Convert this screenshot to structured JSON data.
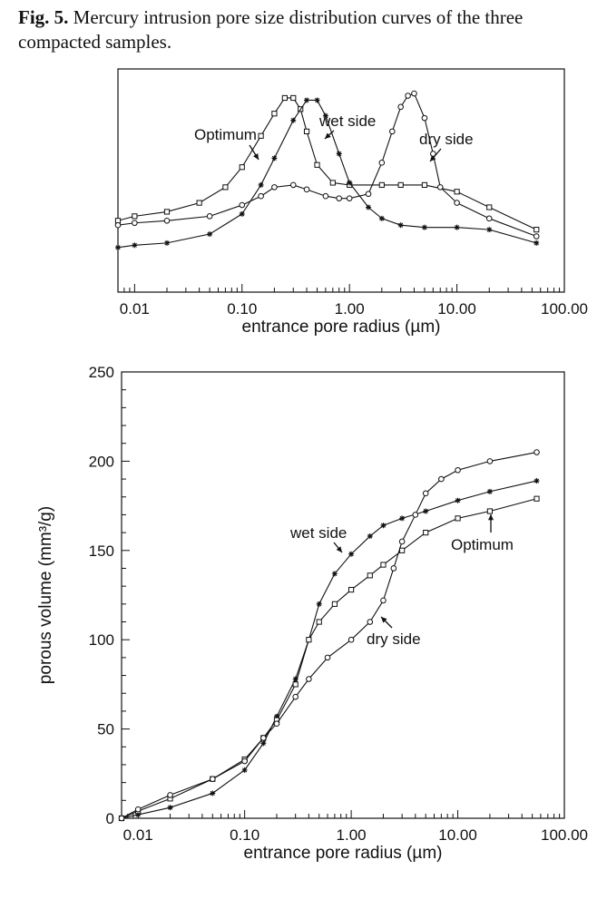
{
  "caption": {
    "label": "Fig. 5.",
    "text": "Mercury intrusion pore size distribution curves of the three compacted samples."
  },
  "chart_data": [
    {
      "type": "line",
      "title": "",
      "xlabel": "entrance pore radius (µm)",
      "ylabel": "",
      "xscale": "log",
      "xlim": [
        0.007,
        100
      ],
      "ylim": [
        0,
        1
      ],
      "x_tick_labels": [
        "0.01",
        "0.10",
        "1.00",
        "10.00",
        "100.00"
      ],
      "annotations": [
        "Optimum",
        "wet side",
        "dry side"
      ],
      "series": [
        {
          "name": "Optimum",
          "marker": "square",
          "x": [
            0.007,
            0.01,
            0.02,
            0.04,
            0.07,
            0.1,
            0.15,
            0.2,
            0.25,
            0.3,
            0.35,
            0.4,
            0.5,
            0.7,
            1.0,
            2.0,
            3.0,
            5.0,
            10,
            20,
            55
          ],
          "y": [
            0.32,
            0.34,
            0.36,
            0.4,
            0.47,
            0.56,
            0.7,
            0.8,
            0.87,
            0.87,
            0.82,
            0.72,
            0.57,
            0.49,
            0.48,
            0.48,
            0.48,
            0.48,
            0.45,
            0.38,
            0.28
          ]
        },
        {
          "name": "wet side",
          "marker": "star",
          "x": [
            0.007,
            0.01,
            0.02,
            0.05,
            0.1,
            0.15,
            0.2,
            0.3,
            0.4,
            0.5,
            0.6,
            0.8,
            1.0,
            1.5,
            2.0,
            3.0,
            5.0,
            10,
            20,
            55
          ],
          "y": [
            0.2,
            0.21,
            0.22,
            0.26,
            0.35,
            0.48,
            0.6,
            0.77,
            0.86,
            0.86,
            0.79,
            0.62,
            0.49,
            0.38,
            0.33,
            0.3,
            0.29,
            0.29,
            0.28,
            0.22
          ]
        },
        {
          "name": "dry side",
          "marker": "circle",
          "x": [
            0.007,
            0.01,
            0.02,
            0.05,
            0.1,
            0.15,
            0.2,
            0.3,
            0.4,
            0.6,
            0.8,
            1.0,
            1.5,
            2.0,
            2.5,
            3.0,
            3.5,
            4.0,
            5.0,
            6.0,
            7.0,
            10,
            20,
            55
          ],
          "y": [
            0.3,
            0.31,
            0.32,
            0.34,
            0.39,
            0.43,
            0.47,
            0.48,
            0.46,
            0.43,
            0.42,
            0.42,
            0.44,
            0.58,
            0.72,
            0.83,
            0.88,
            0.89,
            0.78,
            0.62,
            0.47,
            0.4,
            0.33,
            0.25
          ]
        }
      ]
    },
    {
      "type": "line",
      "title": "",
      "xlabel": "entrance pore radius (µm)",
      "ylabel": "porous volume (mm³/g)",
      "xscale": "log",
      "xlim": [
        0.007,
        100
      ],
      "ylim": [
        0,
        250
      ],
      "x_tick_labels": [
        "0.01",
        "0.10",
        "1.00",
        "10.00",
        "100.00"
      ],
      "y_tick_labels": [
        "0",
        "50",
        "100",
        "150",
        "200",
        "250"
      ],
      "annotations": [
        "wet side",
        "Optimum",
        "dry side"
      ],
      "series": [
        {
          "name": "wet side",
          "marker": "star",
          "x": [
            0.007,
            0.01,
            0.02,
            0.05,
            0.1,
            0.15,
            0.2,
            0.3,
            0.4,
            0.5,
            0.7,
            1.0,
            1.5,
            2.0,
            3.0,
            5.0,
            10,
            20,
            55
          ],
          "y": [
            0,
            2,
            6,
            14,
            27,
            42,
            57,
            78,
            100,
            120,
            137,
            148,
            158,
            164,
            168,
            172,
            178,
            183,
            189
          ]
        },
        {
          "name": "Optimum",
          "marker": "square",
          "x": [
            0.007,
            0.01,
            0.02,
            0.05,
            0.1,
            0.15,
            0.2,
            0.3,
            0.4,
            0.5,
            0.7,
            1.0,
            1.5,
            2.0,
            3.0,
            5.0,
            10,
            20,
            55
          ],
          "y": [
            0,
            4,
            11,
            22,
            33,
            45,
            55,
            75,
            100,
            110,
            120,
            128,
            136,
            142,
            150,
            160,
            168,
            172,
            179
          ]
        },
        {
          "name": "dry side",
          "marker": "circle",
          "x": [
            0.007,
            0.01,
            0.02,
            0.05,
            0.1,
            0.15,
            0.2,
            0.3,
            0.4,
            0.6,
            1.0,
            1.5,
            2.0,
            2.5,
            3.0,
            4.0,
            5.0,
            7.0,
            10,
            20,
            55
          ],
          "y": [
            0,
            5,
            13,
            22,
            32,
            45,
            53,
            68,
            78,
            90,
            100,
            110,
            122,
            140,
            155,
            170,
            182,
            190,
            195,
            200,
            205
          ]
        }
      ]
    }
  ]
}
